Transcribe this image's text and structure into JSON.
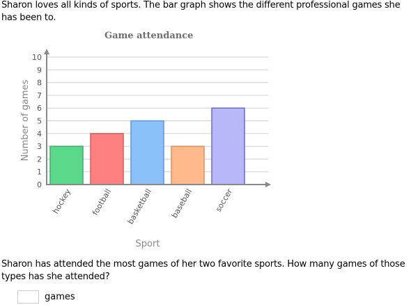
{
  "question": {
    "intro": "Sharon loves all kinds of sports. The bar graph shows the different professional games she has been to.",
    "prompt": "Sharon has attended the most games of her two favorite sports. How many games of those types has she attended?",
    "answer_value": "",
    "answer_unit": "games"
  },
  "chart_data": {
    "type": "bar",
    "title": "Game attendance",
    "xlabel": "Sport",
    "ylabel": "Number of games",
    "categories": [
      "hockey",
      "football",
      "basketball",
      "baseball",
      "soccer"
    ],
    "values": [
      3,
      4,
      5,
      3,
      6
    ],
    "colors": [
      "#5bd98a",
      "#ff8080",
      "#8cc0f8",
      "#ffb98a",
      "#b8b8f8"
    ],
    "border_colors": [
      "#3fae68",
      "#d85c5c",
      "#5a96e6",
      "#e0905c",
      "#6868d0"
    ],
    "ylim": [
      0,
      10
    ],
    "yticks": [
      0,
      1,
      2,
      3,
      4,
      5,
      6,
      7,
      8,
      9,
      10
    ],
    "grid": true,
    "legend": "none"
  }
}
